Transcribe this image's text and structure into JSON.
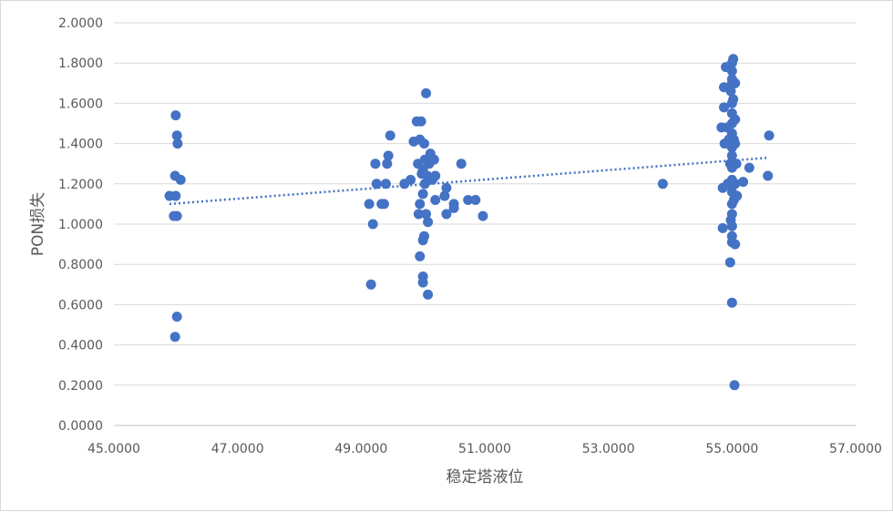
{
  "chart_data": {
    "type": "scatter",
    "title": "",
    "xlabel": "稳定塔液位",
    "ylabel": "PON损失",
    "xlim": [
      45,
      57
    ],
    "ylim": [
      0,
      2
    ],
    "x_ticks": [
      "45.0000",
      "47.0000",
      "49.0000",
      "51.0000",
      "53.0000",
      "55.0000",
      "57.0000"
    ],
    "y_ticks": [
      "0.0000",
      "0.2000",
      "0.4000",
      "0.6000",
      "0.8000",
      "1.0000",
      "1.2000",
      "1.4000",
      "1.6000",
      "1.8000",
      "2.0000"
    ],
    "grid": "horizontal",
    "legend": "none",
    "marker_color": "#4472c4",
    "trendline": {
      "style": "dotted",
      "color": "#4472c4",
      "start": [
        45.9,
        1.1
      ],
      "end": [
        55.6,
        1.33
      ]
    },
    "series": [
      {
        "points": [
          [
            45.9,
            1.14
          ],
          [
            46.0,
            1.14
          ],
          [
            45.97,
            1.04
          ],
          [
            46.02,
            1.04
          ],
          [
            46.0,
            1.54
          ],
          [
            46.02,
            1.44
          ],
          [
            46.03,
            1.4
          ],
          [
            45.99,
            1.24
          ],
          [
            46.08,
            1.22
          ],
          [
            46.02,
            0.54
          ],
          [
            45.99,
            0.44
          ],
          [
            49.13,
            1.1
          ],
          [
            49.16,
            0.7
          ],
          [
            49.19,
            1.0
          ],
          [
            49.23,
            1.3
          ],
          [
            49.25,
            1.2
          ],
          [
            49.33,
            1.1
          ],
          [
            49.37,
            1.1
          ],
          [
            49.4,
            1.2
          ],
          [
            49.42,
            1.3
          ],
          [
            49.44,
            1.34
          ],
          [
            49.47,
            1.44
          ],
          [
            49.7,
            1.2
          ],
          [
            49.8,
            1.22
          ],
          [
            49.85,
            1.41
          ],
          [
            49.9,
            1.51
          ],
          [
            49.92,
            1.3
          ],
          [
            49.95,
            1.42
          ],
          [
            49.95,
            0.84
          ],
          [
            49.97,
            1.51
          ],
          [
            49.98,
            1.25
          ],
          [
            50.0,
            1.27
          ],
          [
            50.0,
            0.74
          ],
          [
            50.0,
            0.71
          ],
          [
            50.02,
            0.94
          ],
          [
            50.0,
            0.92
          ],
          [
            50.02,
            1.4
          ],
          [
            50.03,
            1.2
          ],
          [
            50.05,
            1.65
          ],
          [
            50.07,
            1.24
          ],
          [
            50.08,
            1.01
          ],
          [
            50.08,
            0.65
          ],
          [
            50.1,
            1.3
          ],
          [
            50.12,
            1.35
          ],
          [
            50.15,
            1.22
          ],
          [
            50.18,
            1.32
          ],
          [
            50.2,
            1.24
          ],
          [
            50.2,
            1.12
          ],
          [
            49.93,
            1.05
          ],
          [
            49.95,
            1.1
          ],
          [
            50.05,
            1.05
          ],
          [
            50.0,
            1.15
          ],
          [
            50.03,
            1.32
          ],
          [
            50.35,
            1.14
          ],
          [
            50.38,
            1.18
          ],
          [
            50.38,
            1.05
          ],
          [
            50.5,
            1.08
          ],
          [
            50.5,
            1.1
          ],
          [
            50.62,
            1.3
          ],
          [
            50.73,
            1.12
          ],
          [
            50.85,
            1.12
          ],
          [
            50.97,
            1.04
          ],
          [
            53.88,
            1.2
          ],
          [
            54.83,
            1.48
          ],
          [
            54.85,
            1.18
          ],
          [
            54.85,
            0.98
          ],
          [
            54.87,
            1.68
          ],
          [
            54.87,
            1.58
          ],
          [
            54.88,
            1.4
          ],
          [
            54.9,
            1.78
          ],
          [
            54.92,
            1.48
          ],
          [
            54.93,
            1.2
          ],
          [
            54.95,
            1.42
          ],
          [
            54.97,
            1.3
          ],
          [
            54.97,
            0.81
          ],
          [
            54.98,
            1.66
          ],
          [
            54.98,
            1.02
          ],
          [
            55.0,
            1.8
          ],
          [
            55.0,
            1.76
          ],
          [
            55.0,
            1.72
          ],
          [
            55.0,
            1.7
          ],
          [
            55.0,
            1.6
          ],
          [
            55.0,
            1.55
          ],
          [
            55.0,
            1.5
          ],
          [
            55.0,
            1.45
          ],
          [
            55.0,
            1.38
          ],
          [
            55.0,
            1.34
          ],
          [
            55.0,
            1.28
          ],
          [
            55.0,
            1.22
          ],
          [
            55.0,
            1.16
          ],
          [
            55.0,
            1.1
          ],
          [
            55.0,
            1.05
          ],
          [
            55.0,
            0.99
          ],
          [
            55.0,
            0.94
          ],
          [
            55.0,
            0.91
          ],
          [
            55.0,
            0.61
          ],
          [
            55.02,
            1.82
          ],
          [
            55.02,
            1.62
          ],
          [
            55.03,
            1.42
          ],
          [
            55.03,
            1.12
          ],
          [
            55.04,
            0.2
          ],
          [
            55.05,
            1.7
          ],
          [
            55.05,
            1.52
          ],
          [
            55.05,
            1.4
          ],
          [
            55.05,
            1.3
          ],
          [
            55.05,
            1.2
          ],
          [
            55.05,
            0.9
          ],
          [
            55.07,
            1.3
          ],
          [
            55.08,
            1.14
          ],
          [
            55.18,
            1.21
          ],
          [
            55.28,
            1.28
          ],
          [
            55.58,
            1.24
          ],
          [
            55.6,
            1.44
          ]
        ]
      }
    ]
  }
}
